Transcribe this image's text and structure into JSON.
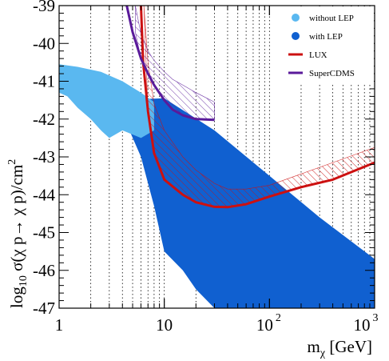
{
  "chart_data": {
    "type": "scatter",
    "title": "",
    "xlabel_main": "m",
    "xlabel_sub": "χ",
    "xlabel_unit": " [GeV]",
    "ylabel_pre": "log",
    "ylabel_sub": "10",
    "ylabel_post": " σ(χ p→ χ p)/cm",
    "ylabel_sup": "2",
    "x_scale": "log",
    "xlim": [
      1,
      1000
    ],
    "ylim": [
      -47,
      -39
    ],
    "grid": "vertical dotted",
    "legend_position": "top-right",
    "x_ticks": [
      {
        "value": 1,
        "label": "1"
      },
      {
        "value": 10,
        "label": "10"
      },
      {
        "value": 100,
        "base": "10",
        "exp": "2"
      },
      {
        "value": 1000,
        "base": "10",
        "exp": "3"
      }
    ],
    "y_ticks": [
      {
        "value": -47,
        "label": "-47"
      },
      {
        "value": -46,
        "label": "-46"
      },
      {
        "value": -45,
        "label": "-45"
      },
      {
        "value": -44,
        "label": "-44"
      },
      {
        "value": -43,
        "label": "-43"
      },
      {
        "value": -42,
        "label": "-42"
      },
      {
        "value": -41,
        "label": "-41"
      },
      {
        "value": -40,
        "label": "-40"
      },
      {
        "value": -39,
        "label": "-39"
      }
    ],
    "regions": [
      {
        "name": "with LEP",
        "color": "#1060d0",
        "boundary": [
          [
            3.5,
            -41.5
          ],
          [
            10,
            -41.45
          ],
          [
            30,
            -42.3
          ],
          [
            100,
            -43.5
          ],
          [
            300,
            -44.6
          ],
          [
            1000,
            -45.7
          ],
          [
            1000,
            -47
          ],
          [
            30,
            -47
          ],
          [
            20,
            -46.5
          ],
          [
            15,
            -46
          ],
          [
            10,
            -45.5
          ],
          [
            8,
            -44.3
          ],
          [
            6,
            -43
          ],
          [
            4.5,
            -42.2
          ],
          [
            3.5,
            -41.6
          ]
        ]
      },
      {
        "name": "without LEP",
        "color": "#5ab8f0",
        "boundary": [
          [
            1,
            -40.55
          ],
          [
            1.5,
            -40.62
          ],
          [
            2.5,
            -40.75
          ],
          [
            4,
            -41.0
          ],
          [
            6,
            -41.3
          ],
          [
            8,
            -41.55
          ],
          [
            8,
            -42.3
          ],
          [
            6,
            -42.5
          ],
          [
            4,
            -42.3
          ],
          [
            3,
            -42.5
          ],
          [
            2.5,
            -42.3
          ],
          [
            2,
            -42.0
          ],
          [
            1.5,
            -41.7
          ],
          [
            1.2,
            -41.4
          ],
          [
            1,
            -41.3
          ]
        ]
      }
    ],
    "series": [
      {
        "name": "LUX",
        "color": "#cc1010",
        "x": [
          6,
          6.3,
          7,
          8,
          10,
          15,
          20,
          30,
          40,
          60,
          100,
          200,
          400,
          1000
        ],
        "y": [
          -39,
          -40.5,
          -41.8,
          -42.9,
          -43.6,
          -44.0,
          -44.2,
          -44.32,
          -44.33,
          -44.25,
          -44.05,
          -43.8,
          -43.6,
          -43.15
        ]
      },
      {
        "name": "SuperCDMS",
        "color": "#5a1a9a",
        "x": [
          4.4,
          5,
          6,
          7,
          8,
          10,
          12,
          15,
          20,
          30
        ],
        "y": [
          -39,
          -39.7,
          -40.4,
          -40.8,
          -41.1,
          -41.5,
          -41.75,
          -41.9,
          -42.0,
          -42.02
        ]
      }
    ],
    "hatched_bands": [
      {
        "of": "LUX",
        "x": [
          6.4,
          7,
          8,
          10,
          15,
          20,
          30,
          40,
          60,
          100,
          200,
          400,
          1000
        ],
        "y_upper": [
          -39,
          -40.5,
          -41.6,
          -42.3,
          -43.0,
          -43.35,
          -43.7,
          -43.85,
          -43.85,
          -43.75,
          -43.45,
          -43.15,
          -42.75
        ],
        "y_lower": [
          -39,
          -41.8,
          -42.9,
          -43.6,
          -44.0,
          -44.2,
          -44.32,
          -44.33,
          -44.25,
          -44.05,
          -43.8,
          -43.6,
          -43.15
        ]
      },
      {
        "of": "SuperCDMS",
        "x": [
          5.3,
          6,
          7,
          8,
          10,
          12,
          15,
          20,
          30
        ],
        "y_upper": [
          -39,
          -39.75,
          -40.2,
          -40.45,
          -40.75,
          -40.95,
          -41.1,
          -41.3,
          -41.55
        ],
        "y_lower": [
          -39.7,
          -40.4,
          -40.8,
          -41.1,
          -41.5,
          -41.75,
          -41.9,
          -42.0,
          -42.02
        ]
      }
    ],
    "legend": [
      {
        "label": "without LEP",
        "kind": "marker",
        "color": "#5ab8f0"
      },
      {
        "label": "with LEP",
        "kind": "marker",
        "color": "#1060d0"
      },
      {
        "label": "LUX",
        "kind": "line",
        "color": "#cc1010"
      },
      {
        "label": "SuperCDMS",
        "kind": "line",
        "color": "#5a1a9a"
      }
    ]
  }
}
